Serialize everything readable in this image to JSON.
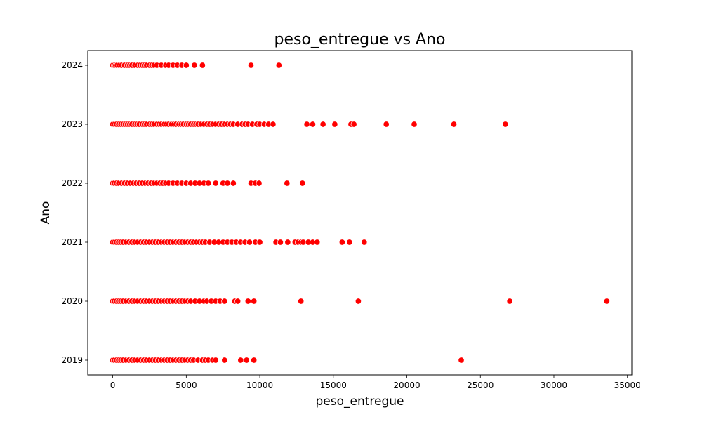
{
  "chart_data": {
    "type": "scatter",
    "title": "peso_entregue vs Ano",
    "xlabel": "peso_entregue",
    "ylabel": "Ano",
    "xlim": [
      -1700,
      35300
    ],
    "ylim": [
      2018.75,
      2024.25
    ],
    "x_ticks": [
      0,
      5000,
      10000,
      15000,
      20000,
      25000,
      30000,
      35000
    ],
    "y_ticks": [
      2019,
      2020,
      2021,
      2022,
      2023,
      2024
    ],
    "grid": false,
    "legend": "none",
    "marker_color": "#ff0000",
    "marker_edge_color": "#ffffff",
    "series": [
      {
        "points": [
          {
            "y": 2024,
            "x": [
              0,
              100,
              200,
              300,
              450,
              600,
              800,
              1000,
              1150,
              1300,
              1500,
              1700,
              1850,
              2000,
              2150,
              2300,
              2500,
              2650,
              2800,
              3000,
              3300,
              3600,
              3800,
              4100,
              4400,
              4700,
              5000,
              5550,
              6100,
              9400,
              11300
            ]
          },
          {
            "y": 2023,
            "x": [
              0,
              120,
              250,
              400,
              550,
              700,
              850,
              1000,
              1150,
              1300,
              1500,
              1650,
              1800,
              2000,
              2150,
              2300,
              2500,
              2650,
              2800,
              3000,
              3150,
              3300,
              3500,
              3650,
              3800,
              4000,
              4150,
              4300,
              4500,
              4650,
              4800,
              5000,
              5150,
              5300,
              5500,
              5650,
              5800,
              6000,
              6200,
              6400,
              6600,
              6800,
              7000,
              7200,
              7400,
              7600,
              7800,
              8000,
              8200,
              8500,
              8800,
              9000,
              9200,
              9500,
              9800,
              10000,
              10300,
              10600,
              10900,
              13200,
              13600,
              14300,
              15100,
              16200,
              16400,
              18600,
              20500,
              23200,
              26700
            ]
          },
          {
            "y": 2022,
            "x": [
              0,
              100,
              250,
              400,
              600,
              800,
              1000,
              1200,
              1400,
              1600,
              1800,
              2000,
              2200,
              2400,
              2600,
              2800,
              3000,
              3200,
              3400,
              3600,
              3800,
              4100,
              4400,
              4700,
              5000,
              5300,
              5600,
              5900,
              6200,
              6500,
              7000,
              7500,
              7800,
              8200,
              9400,
              9700,
              9950,
              11850,
              12900
            ]
          },
          {
            "y": 2021,
            "x": [
              0,
              120,
              250,
              400,
              550,
              700,
              900,
              1100,
              1300,
              1500,
              1700,
              1900,
              2100,
              2300,
              2500,
              2700,
              2900,
              3100,
              3300,
              3500,
              3700,
              3900,
              4100,
              4300,
              4500,
              4700,
              4900,
              5100,
              5300,
              5500,
              5700,
              5900,
              6100,
              6300,
              6600,
              6900,
              7200,
              7500,
              7800,
              8100,
              8400,
              8700,
              9000,
              9300,
              9700,
              10000,
              11100,
              11400,
              11900,
              12400,
              12600,
              12800,
              12950,
              13300,
              13600,
              13900,
              15600,
              16100,
              17100
            ]
          },
          {
            "y": 2020,
            "x": [
              0,
              100,
              250,
              400,
              550,
              700,
              900,
              1100,
              1300,
              1500,
              1700,
              1900,
              2100,
              2300,
              2500,
              2700,
              2900,
              3100,
              3300,
              3500,
              3700,
              3900,
              4100,
              4300,
              4500,
              4700,
              4900,
              5100,
              5300,
              5600,
              5900,
              6200,
              6400,
              6700,
              7000,
              7300,
              7600,
              8300,
              8500,
              9200,
              9600,
              12800,
              16700,
              27000,
              33600
            ]
          },
          {
            "y": 2019,
            "x": [
              0,
              100,
              250,
              400,
              550,
              700,
              900,
              1100,
              1300,
              1500,
              1700,
              1900,
              2100,
              2300,
              2500,
              2700,
              2900,
              3100,
              3300,
              3500,
              3700,
              3900,
              4100,
              4300,
              4500,
              4700,
              4900,
              5100,
              5300,
              5500,
              5800,
              6100,
              6300,
              6500,
              6800,
              7000,
              7600,
              8700,
              9100,
              9600,
              23700
            ]
          }
        ]
      }
    ]
  }
}
